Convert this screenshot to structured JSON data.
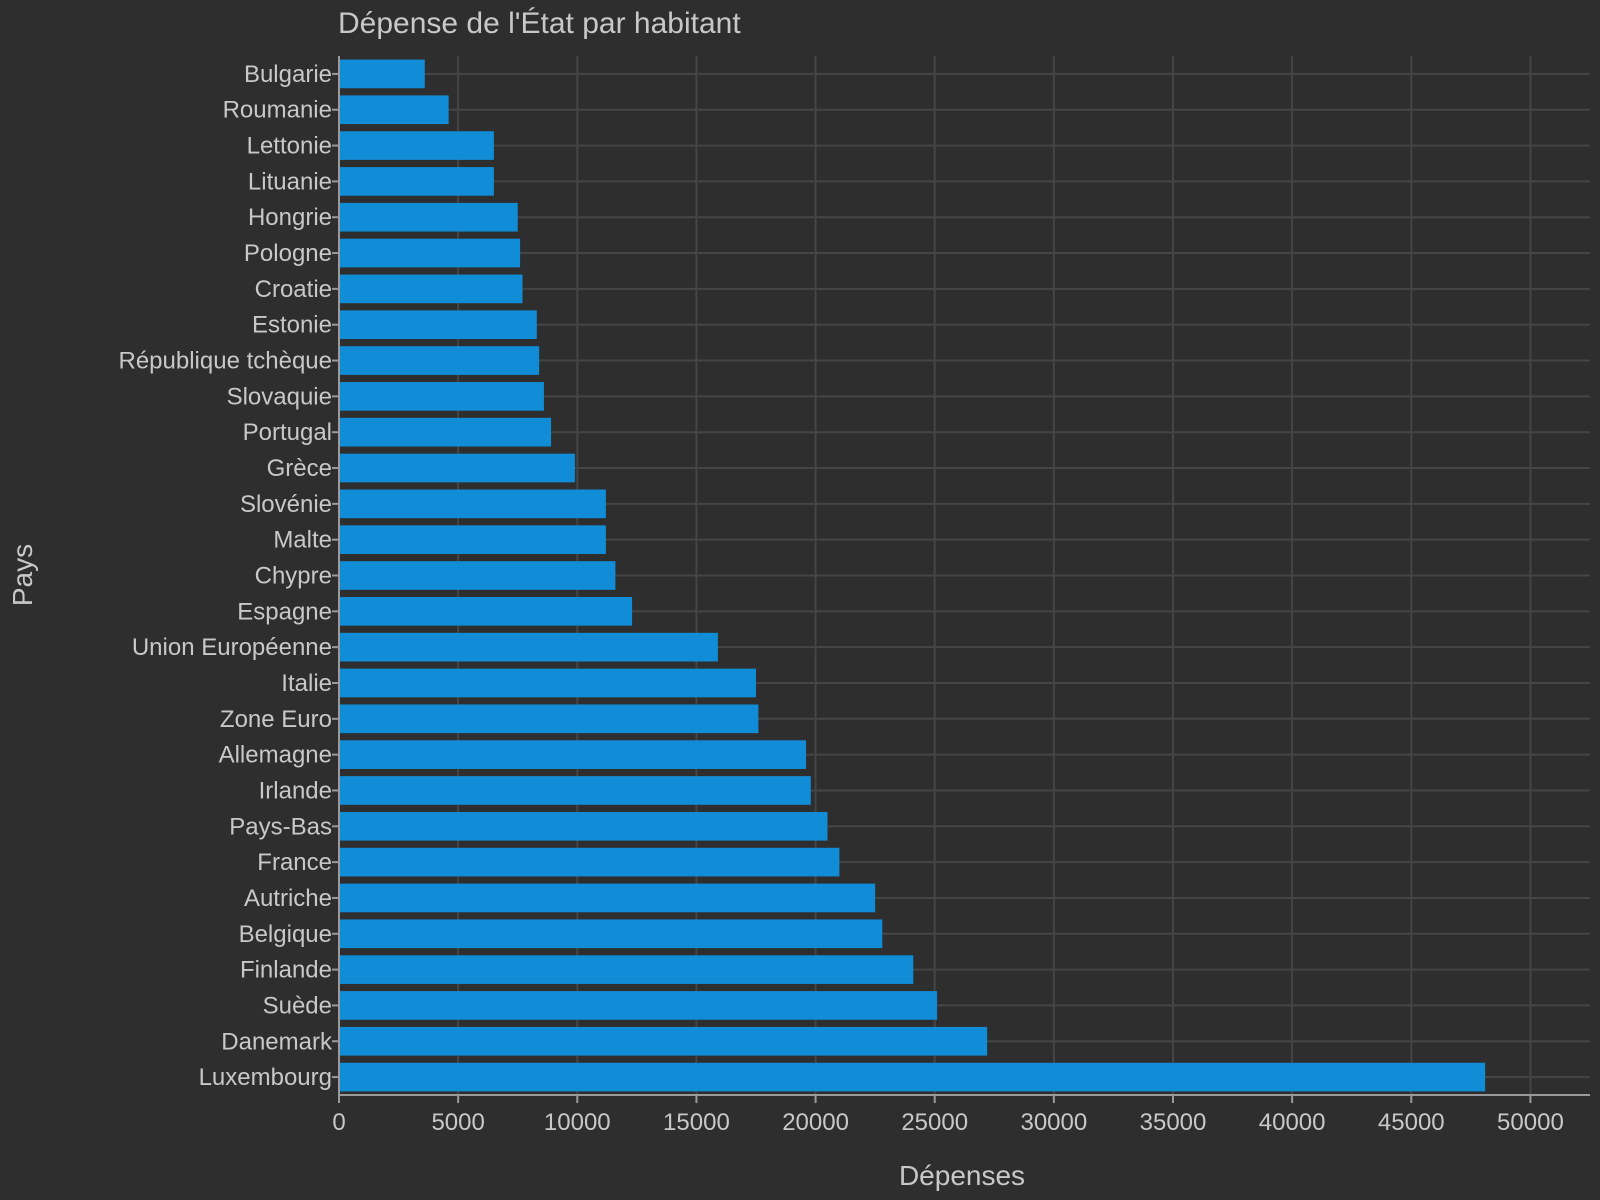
{
  "chart_data": {
    "type": "bar",
    "orientation": "horizontal",
    "title": "Dépense de l'État par habitant",
    "xlabel": "Dépenses",
    "ylabel": "Pays",
    "xlim": [
      0,
      52500
    ],
    "xticks": [
      0,
      5000,
      10000,
      15000,
      20000,
      25000,
      30000,
      35000,
      40000,
      45000,
      50000
    ],
    "xtick_labels": [
      "0",
      "5000",
      "10000",
      "15000",
      "20000",
      "25000",
      "30000",
      "35000",
      "40000",
      "45000",
      "50000"
    ],
    "grid": true,
    "legend": "none",
    "bar_color": "#118dd8",
    "background_color": "#2e2e2e",
    "categories": [
      "Bulgarie",
      "Roumanie",
      "Lettonie",
      "Lituanie",
      "Hongrie",
      "Pologne",
      "Croatie",
      "Estonie",
      "République tchèque",
      "Slovaquie",
      "Portugal",
      "Grèce",
      "Slovénie",
      "Malte",
      "Chypre",
      "Espagne",
      "Union Européenne",
      "Italie",
      "Zone Euro",
      "Allemagne",
      "Irlande",
      "Pays-Bas",
      "France",
      "Autriche",
      "Belgique",
      "Finlande",
      "Suède",
      "Danemark",
      "Luxembourg"
    ],
    "values": [
      3600,
      4600,
      6500,
      6500,
      7500,
      7600,
      7700,
      8300,
      8400,
      8600,
      8900,
      9900,
      11200,
      11200,
      11600,
      12300,
      15900,
      17500,
      17600,
      19600,
      19800,
      20500,
      21000,
      22500,
      22800,
      24100,
      25100,
      27200,
      48100
    ]
  }
}
